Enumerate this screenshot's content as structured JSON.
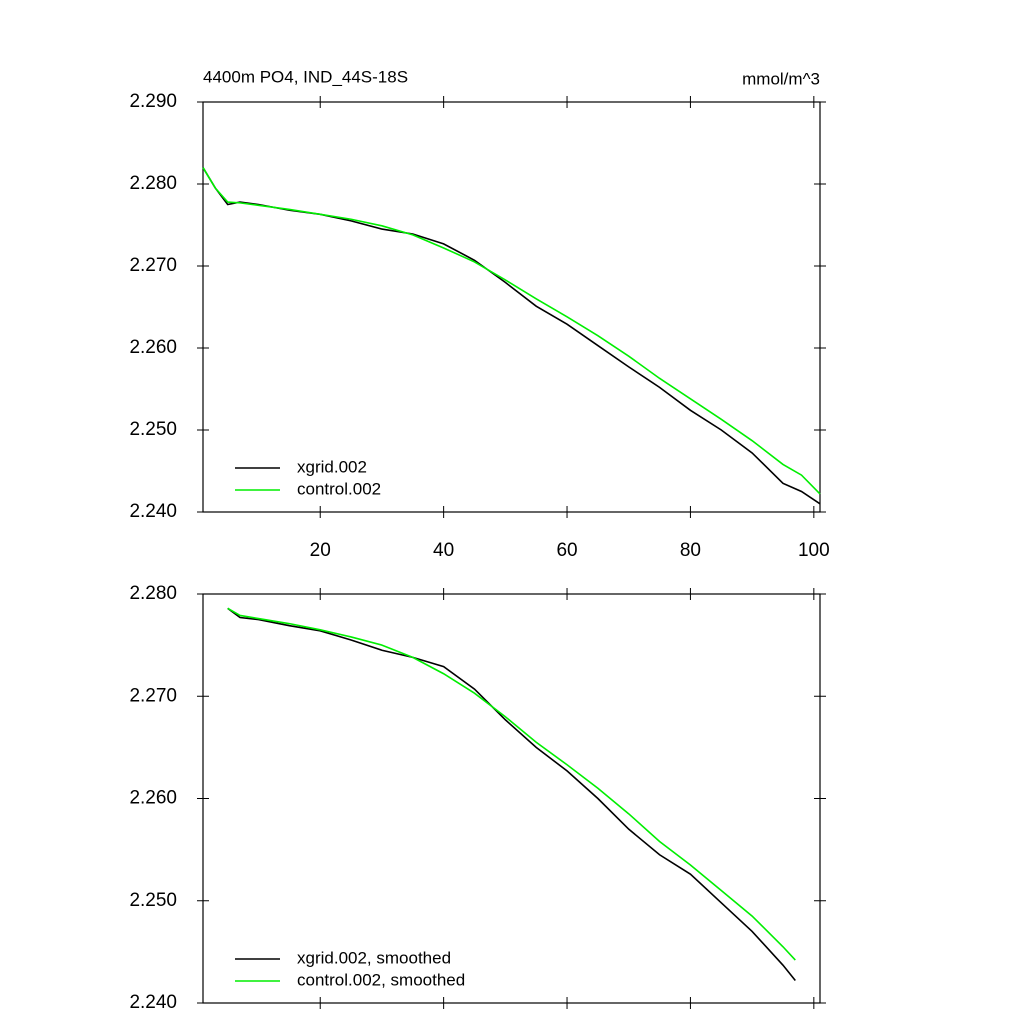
{
  "chart_data": [
    {
      "type": "line",
      "title": "4400m PO4, IND_44S-18S",
      "units": "mmol/m^3",
      "x": [
        1,
        3,
        5,
        7,
        10,
        15,
        20,
        25,
        30,
        35,
        40,
        45,
        50,
        55,
        60,
        65,
        70,
        75,
        80,
        85,
        90,
        95,
        98,
        101
      ],
      "series": [
        {
          "name": "xgrid.002",
          "color": "#000000",
          "values": [
            2.282,
            2.2795,
            2.2775,
            2.2778,
            2.2775,
            2.2768,
            2.2763,
            2.2755,
            2.2745,
            2.2739,
            2.2727,
            2.2707,
            2.268,
            2.2651,
            2.2629,
            2.2603,
            2.2577,
            2.2552,
            2.2524,
            2.25,
            2.2472,
            2.2435,
            2.2425,
            2.241
          ]
        },
        {
          "name": "control.002",
          "color": "#00ee00",
          "values": [
            2.282,
            2.2795,
            2.2778,
            2.2777,
            2.2774,
            2.2769,
            2.2763,
            2.2757,
            2.2749,
            2.2738,
            2.2722,
            2.2705,
            2.2683,
            2.266,
            2.2638,
            2.2615,
            2.259,
            2.2563,
            2.2538,
            2.2513,
            2.2487,
            2.2458,
            2.2445,
            2.2422
          ]
        }
      ],
      "xlim": [
        1,
        101
      ],
      "xticks": [
        20,
        40,
        60,
        80,
        100
      ],
      "ylim": [
        2.24,
        2.29
      ],
      "yticks": [
        {
          "value": 2.24,
          "label": "2.240"
        },
        {
          "value": 2.25,
          "label": "2.250"
        },
        {
          "value": 2.26,
          "label": "2.260"
        },
        {
          "value": 2.27,
          "label": "2.270"
        },
        {
          "value": 2.28,
          "label": "2.280"
        },
        {
          "value": 2.29,
          "label": "2.290"
        }
      ]
    },
    {
      "type": "line",
      "x": [
        5,
        7,
        10,
        15,
        20,
        25,
        30,
        35,
        40,
        45,
        50,
        55,
        60,
        65,
        70,
        75,
        80,
        85,
        90,
        95,
        97
      ],
      "series": [
        {
          "name": "xgrid.002, smoothed",
          "color": "#000000",
          "values": [
            2.2786,
            2.2777,
            2.2775,
            2.2769,
            2.2764,
            2.2755,
            2.2745,
            2.2738,
            2.2729,
            2.2707,
            2.2677,
            2.265,
            2.2627,
            2.26,
            2.257,
            2.2545,
            2.2526,
            2.2498,
            2.247,
            2.2437,
            2.2422
          ]
        },
        {
          "name": "control.002, smoothed",
          "color": "#00ee00",
          "values": [
            2.2786,
            2.2779,
            2.2776,
            2.2771,
            2.2765,
            2.2758,
            2.275,
            2.2738,
            2.2722,
            2.2703,
            2.268,
            2.2655,
            2.2633,
            2.261,
            2.2585,
            2.2558,
            2.2535,
            2.251,
            2.2485,
            2.2455,
            2.2442
          ]
        }
      ],
      "xlim": [
        1,
        101
      ],
      "xticks": [
        20,
        40,
        60,
        80,
        100
      ],
      "ylim": [
        2.24,
        2.28
      ],
      "yticks": [
        {
          "value": 2.24,
          "label": "2.240"
        },
        {
          "value": 2.25,
          "label": "2.250"
        },
        {
          "value": 2.26,
          "label": "2.260"
        },
        {
          "value": 2.27,
          "label": "2.270"
        },
        {
          "value": 2.28,
          "label": "2.280"
        }
      ]
    }
  ]
}
